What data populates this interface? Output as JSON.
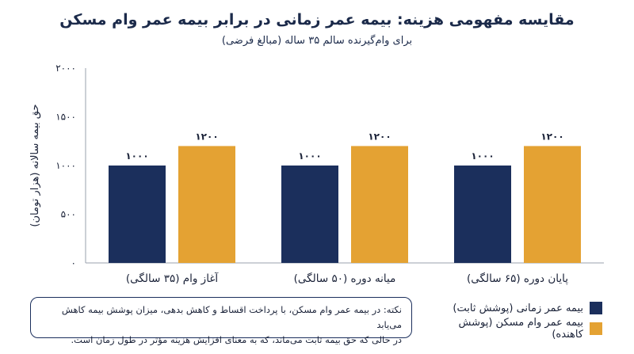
{
  "header": {
    "title": "مقایسه مفهومی هزینه: بیمه عمر زمانی در برابر بیمه عمر وام مسکن",
    "subtitle": "برای وام‌گیرنده سالم ۳۵ ساله (مبالغ فرضی)"
  },
  "chart_data": {
    "type": "bar",
    "title": "مقایسه مفهومی هزینه: بیمه عمر زمانی در برابر بیمه عمر وام مسکن",
    "subtitle": "برای وام‌گیرنده سالم ۳۵ ساله (مبالغ فرضی)",
    "xlabel": "",
    "ylabel": "حق بیمه سالانه (هزار تومان)",
    "ylim": [
      0,
      2000
    ],
    "yticks": [
      0,
      500,
      1000,
      1500,
      2000
    ],
    "ytick_labels": [
      "۰",
      "۵۰۰",
      "۱۰۰۰",
      "۱۵۰۰",
      "۲۰۰۰"
    ],
    "categories": [
      "آغاز وام (۳۵ سالگی)",
      "میانه دوره (۵۰ سالگی)",
      "پایان دوره (۶۵ سالگی)"
    ],
    "series": [
      {
        "name": "بیمه عمر زمانی (پوشش ثابت)",
        "values": [
          1000,
          1000,
          1000
        ],
        "labels": [
          "۱۰۰۰",
          "۱۰۰۰",
          "۱۰۰۰"
        ],
        "color": "#1b2f5c"
      },
      {
        "name": "بیمه عمر وام مسکن (پوشش کاهنده)",
        "values": [
          1200,
          1200,
          1200
        ],
        "labels": [
          "۱۲۰۰",
          "۱۲۰۰",
          "۱۲۰۰"
        ],
        "color": "#e4a233"
      }
    ],
    "grid": false,
    "legend": "bottom-right"
  },
  "note": {
    "line1": "نکته: در بیمه عمر وام مسکن، با پرداخت اقساط و کاهش بدهی، میزان پوشش بیمه کاهش می‌یابد",
    "line2": "در حالی که حق بیمه ثابت می‌ماند، که به معنای افزایش هزینه مؤثر در طول زمان است."
  }
}
